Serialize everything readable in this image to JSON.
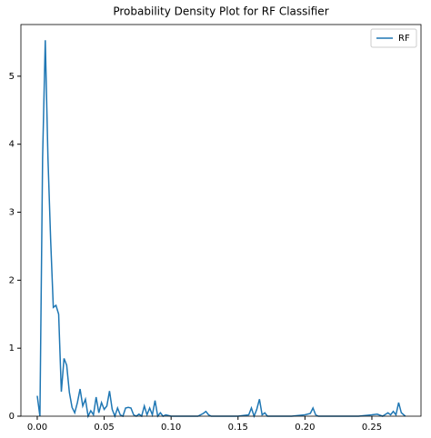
{
  "chart_data": {
    "type": "line",
    "title": "Probability Density Plot for RF Classifier",
    "x": [
      0.0,
      0.002,
      0.004,
      0.006,
      0.008,
      0.01,
      0.012,
      0.014,
      0.016,
      0.018,
      0.02,
      0.022,
      0.024,
      0.026,
      0.028,
      0.03,
      0.032,
      0.034,
      0.036,
      0.038,
      0.04,
      0.042,
      0.044,
      0.046,
      0.048,
      0.05,
      0.052,
      0.054,
      0.056,
      0.058,
      0.06,
      0.062,
      0.064,
      0.066,
      0.068,
      0.07,
      0.072,
      0.074,
      0.076,
      0.078,
      0.08,
      0.082,
      0.084,
      0.086,
      0.088,
      0.09,
      0.092,
      0.094,
      0.096,
      0.1,
      0.11,
      0.12,
      0.124,
      0.126,
      0.128,
      0.13,
      0.14,
      0.15,
      0.158,
      0.16,
      0.162,
      0.164,
      0.166,
      0.168,
      0.17,
      0.172,
      0.18,
      0.19,
      0.2,
      0.204,
      0.206,
      0.208,
      0.21,
      0.212,
      0.22,
      0.23,
      0.24,
      0.25,
      0.254,
      0.258,
      0.262,
      0.264,
      0.266,
      0.268,
      0.27,
      0.272,
      0.275
    ],
    "series": [
      {
        "name": "RF",
        "color": "#1f77b4",
        "values": [
          0.3,
          0.0,
          3.8,
          5.53,
          3.8,
          2.6,
          1.6,
          1.63,
          1.5,
          0.36,
          0.85,
          0.75,
          0.35,
          0.13,
          0.05,
          0.2,
          0.4,
          0.15,
          0.25,
          0.0,
          0.08,
          0.02,
          0.28,
          0.05,
          0.2,
          0.1,
          0.15,
          0.37,
          0.1,
          0.0,
          0.12,
          0.02,
          0.0,
          0.12,
          0.13,
          0.12,
          0.02,
          0.0,
          0.03,
          0.0,
          0.15,
          0.02,
          0.12,
          0.02,
          0.23,
          0.0,
          0.05,
          0.0,
          0.02,
          0.0,
          0.0,
          0.0,
          0.04,
          0.07,
          0.02,
          0.0,
          0.0,
          0.0,
          0.02,
          0.12,
          0.0,
          0.1,
          0.25,
          0.02,
          0.05,
          0.0,
          0.0,
          0.0,
          0.02,
          0.04,
          0.12,
          0.02,
          0.0,
          0.0,
          0.0,
          0.0,
          0.0,
          0.02,
          0.03,
          0.0,
          0.05,
          0.02,
          0.07,
          0.02,
          0.2,
          0.05,
          0.0
        ]
      }
    ],
    "xlim": [
      -0.0122,
      0.2867
    ],
    "ylim": [
      0,
      5.76
    ],
    "xticks": [
      {
        "value": 0,
        "label": "0.00"
      },
      {
        "value": 0.05,
        "label": "0.05"
      },
      {
        "value": 0.1,
        "label": "0.10"
      },
      {
        "value": 0.15,
        "label": "0.15"
      },
      {
        "value": 0.2,
        "label": "0.20"
      },
      {
        "value": 0.25,
        "label": "0.25"
      }
    ],
    "yticks": [
      0,
      1,
      2,
      3,
      4,
      5
    ],
    "legend": "upper right"
  }
}
